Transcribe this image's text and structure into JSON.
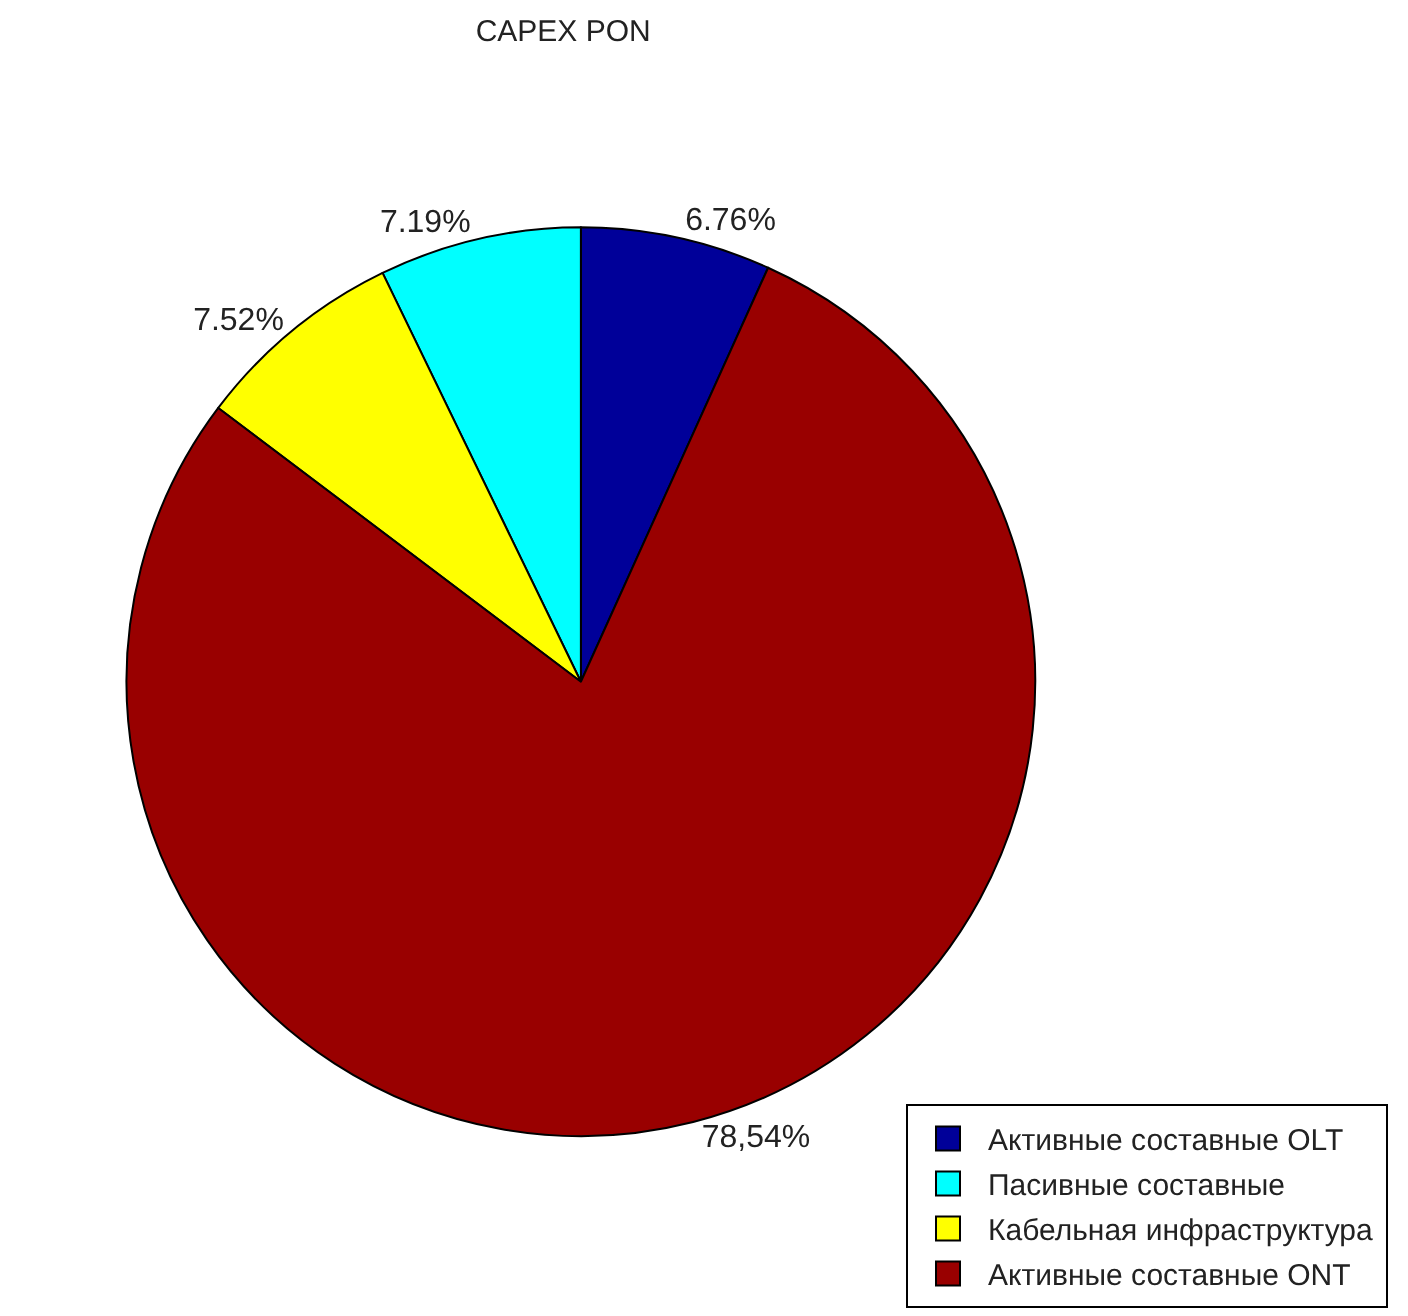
{
  "chart_data": {
    "type": "pie",
    "title": "CAPEX PON",
    "categories": [
      "Активные составные OLT",
      "Пасивные составные",
      "Кабельная инфраструктура",
      "Активные составные ONT"
    ],
    "values": [
      6.76,
      7.19,
      7.52,
      78.54
    ],
    "value_labels": [
      "6.76%",
      "7.19%",
      "7.52%",
      "78,54%"
    ],
    "colors": [
      "#000099",
      "#00ffff",
      "#ffff00",
      "#990000"
    ],
    "legend": "bottom right"
  }
}
